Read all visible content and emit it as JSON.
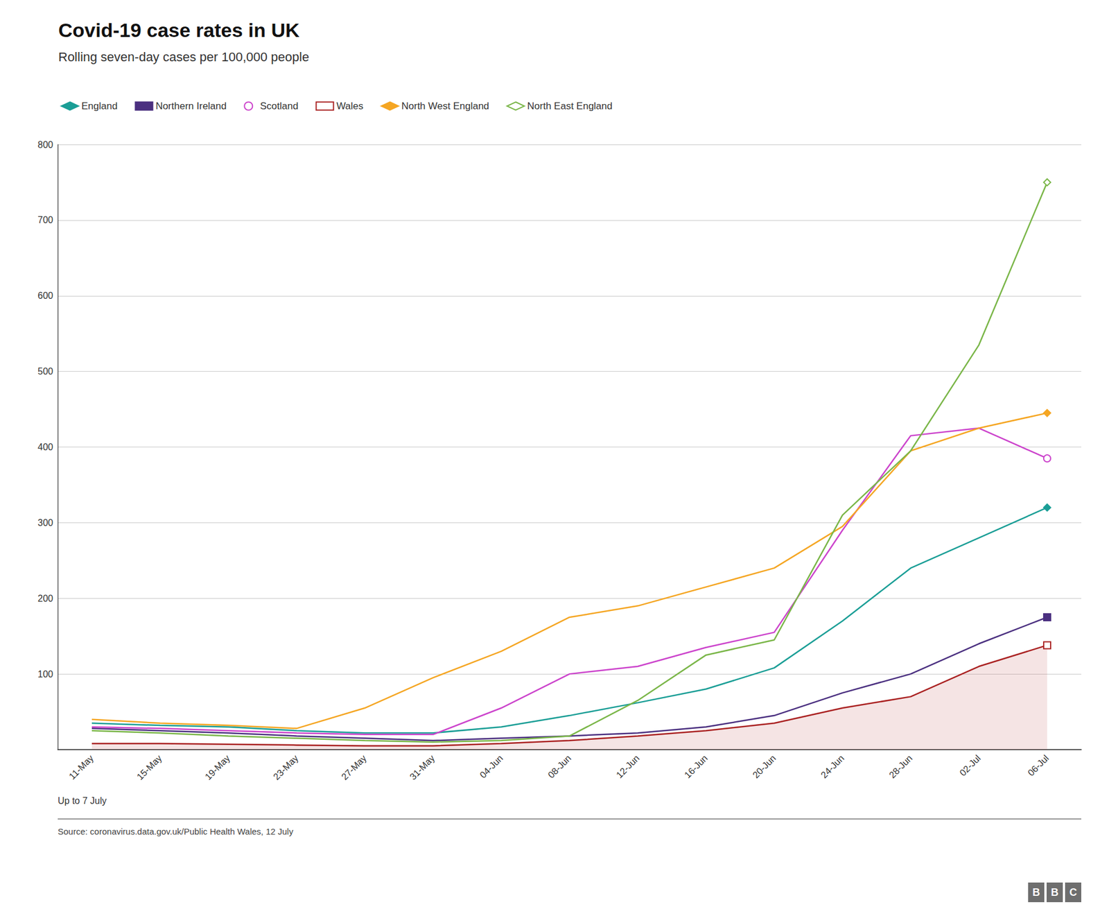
{
  "chart_data": {
    "type": "line",
    "title": "Covid-19 case rates in UK",
    "subtitle": "Rolling seven-day cases per 100,000 people",
    "annotations": [
      "Up to 7 July",
      "Source: coronavirus.data.gov.uk/Public Health Wales, 12 July",
      "BBC"
    ],
    "categories": [
      "11-May",
      "15-May",
      "19-May",
      "23-May",
      "27-May",
      "31-May",
      "04-Jun",
      "08-Jun",
      "12-Jun",
      "16-Jun",
      "20-Jun",
      "24-Jun",
      "28-Jun",
      "02-Jul",
      "06-Jul"
    ],
    "series": [
      {
        "name": "England",
        "color": "#1a9e96",
        "marker": "diamond",
        "values": [
          35,
          32,
          30,
          25,
          22,
          22,
          30,
          45,
          62,
          80,
          108,
          170,
          240,
          280,
          320
        ]
      },
      {
        "name": "Northern Ireland",
        "color": "#4b3080",
        "marker": "square",
        "values": [
          28,
          25,
          22,
          18,
          15,
          12,
          15,
          18,
          22,
          30,
          45,
          75,
          100,
          140,
          175
        ]
      },
      {
        "name": "Scotland",
        "color": "#cc44cc",
        "marker": "circle-open",
        "values": [
          30,
          28,
          25,
          22,
          20,
          20,
          55,
          100,
          110,
          135,
          155,
          290,
          415,
          425,
          385
        ]
      },
      {
        "name": "Wales",
        "color": "#aa2222",
        "marker": "square-open",
        "type": "area",
        "values": [
          8,
          8,
          7,
          6,
          5,
          5,
          8,
          12,
          18,
          25,
          35,
          55,
          70,
          110,
          138
        ]
      },
      {
        "name": "North West England",
        "color": "#f5a623",
        "marker": "diamond",
        "values": [
          40,
          35,
          32,
          28,
          55,
          95,
          130,
          175,
          190,
          215,
          240,
          295,
          395,
          425,
          445
        ]
      },
      {
        "name": "North East England",
        "color": "#7ab648",
        "marker": "diamond-open",
        "values": [
          25,
          22,
          18,
          15,
          12,
          10,
          12,
          18,
          65,
          125,
          145,
          310,
          395,
          535,
          750
        ]
      }
    ],
    "ylim": [
      0,
      800
    ],
    "yticks": [
      100,
      200,
      300,
      400,
      500,
      600,
      700,
      800
    ],
    "grid": true,
    "legend": "top"
  }
}
